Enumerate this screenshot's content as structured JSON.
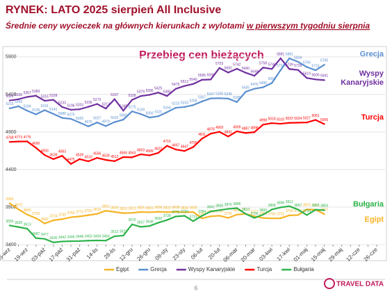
{
  "chart_data": {
    "type": "line",
    "title": "RYNEK: LATO 2025 sierpień All Inclusive",
    "subtitle": "Średnie ceny wycieczek na głównych kierunkach z wylotami",
    "subtitle_underlined": "w pierwszym tygodniu sierpnia",
    "chart_title": "Przebieg cen bieżących",
    "page_number": "6",
    "logo": "TRAVEL DATA",
    "categories": [
      "05-wrz",
      null,
      "19-wrz",
      null,
      "03-paź",
      null,
      "17-paź",
      null,
      "31-paź",
      null,
      "14-lis",
      null,
      "28-lis",
      null,
      "12-gru",
      null,
      "26-gru",
      null,
      "09-sty",
      null,
      "23-sty",
      null,
      "06-lut",
      null,
      "20-lut",
      null,
      "06-mar",
      null,
      "20-mar",
      null,
      "03-kwi",
      null,
      "17-kwi",
      null,
      "01-maj",
      null,
      "15-maj",
      null,
      "29-maj",
      null,
      "12-cze",
      null,
      "26-cze"
    ],
    "ylim": [
      3400,
      6010
    ],
    "yticks": [
      3400,
      3900,
      4400,
      4900,
      5400,
      5900
    ],
    "grid": true,
    "legend": "bottom",
    "series": [
      {
        "name": "Egipt",
        "color": "#f5b324",
        "values": [
          3950,
          3870,
          3800,
          3753,
          3682,
          3724,
          3740,
          3765,
          3776,
          3792,
          3810,
          3852,
          3835,
          3820,
          3823,
          3835,
          3831,
          3838,
          3833,
          3838,
          3830,
          3835,
          3750,
          3778,
          3785,
          3756,
          3800,
          3810,
          3777,
          3755,
          3750,
          3752,
          3790,
          3794,
          3870,
          3865,
          3807,
          null,
          null,
          null,
          null,
          null,
          null
        ]
      },
      {
        "name": "Grecja",
        "color": "#5b8fd0",
        "values": [
          5216,
          5243,
          5184,
          5135,
          5191,
          5141,
          5088,
          5075,
          5025,
          4975,
          5027,
          4979,
          5032,
          5065,
          5175,
          5139,
          5093,
          5110,
          5164,
          5223,
          5233,
          5258,
          5307,
          5347,
          5350,
          5345,
          5299,
          5435,
          5476,
          5496,
          5552,
          5724,
          5881,
          5834,
          5766,
          5723,
          5795,
          null,
          null,
          null,
          null,
          null,
          null
        ]
      },
      {
        "name": "Wyspy Kanaryjskie",
        "color": "#7030a0",
        "values": [
          5320,
          5336,
          5367,
          5383,
          5316,
          5328,
          5233,
          5196,
          5203,
          5236,
          5273,
          5213,
          5337,
          5185,
          5328,
          5379,
          5395,
          5425,
          5380,
          5475,
          5513,
          5540,
          5595,
          5599,
          5753,
          5692,
          5742,
          5690,
          5649,
          5758,
          5740,
          5881,
          5739,
          5726,
          5619,
          5600,
          5591,
          null,
          null,
          null,
          null,
          null,
          null
        ]
      },
      {
        "name": "Turcja",
        "color": "#ff0000",
        "values": [
          4768,
          4773,
          4775,
          4690,
          4593,
          4539,
          4583,
          4475,
          4539,
          4510,
          4556,
          4528,
          4512,
          4566,
          4563,
          4603,
          4589,
          4622,
          4716,
          4667,
          4647,
          4700,
          4811,
          4878,
          4903,
          4841,
          4909,
          4887,
          4898,
          4998,
          5018,
          5010,
          5022,
          5024,
          5027,
          5061,
          5006,
          null,
          null,
          null,
          null,
          null,
          null
        ]
      },
      {
        "name": "Bułgaria",
        "color": "#2db34a",
        "values": [
          3655,
          3635,
          3613,
          3487,
          3477,
          3430,
          3442,
          3446,
          3448,
          3453,
          3456,
          3454,
          3512,
          3521,
          3670,
          3637,
          3648,
          3692,
          3728,
          3775,
          3784,
          3713,
          3784,
          3842,
          3860,
          3876,
          3886,
          3810,
          3756,
          3800,
          3868,
          3896,
          3912,
          3867,
          3794,
          3865,
          3859,
          null,
          null,
          null,
          null,
          null,
          null
        ]
      }
    ]
  }
}
